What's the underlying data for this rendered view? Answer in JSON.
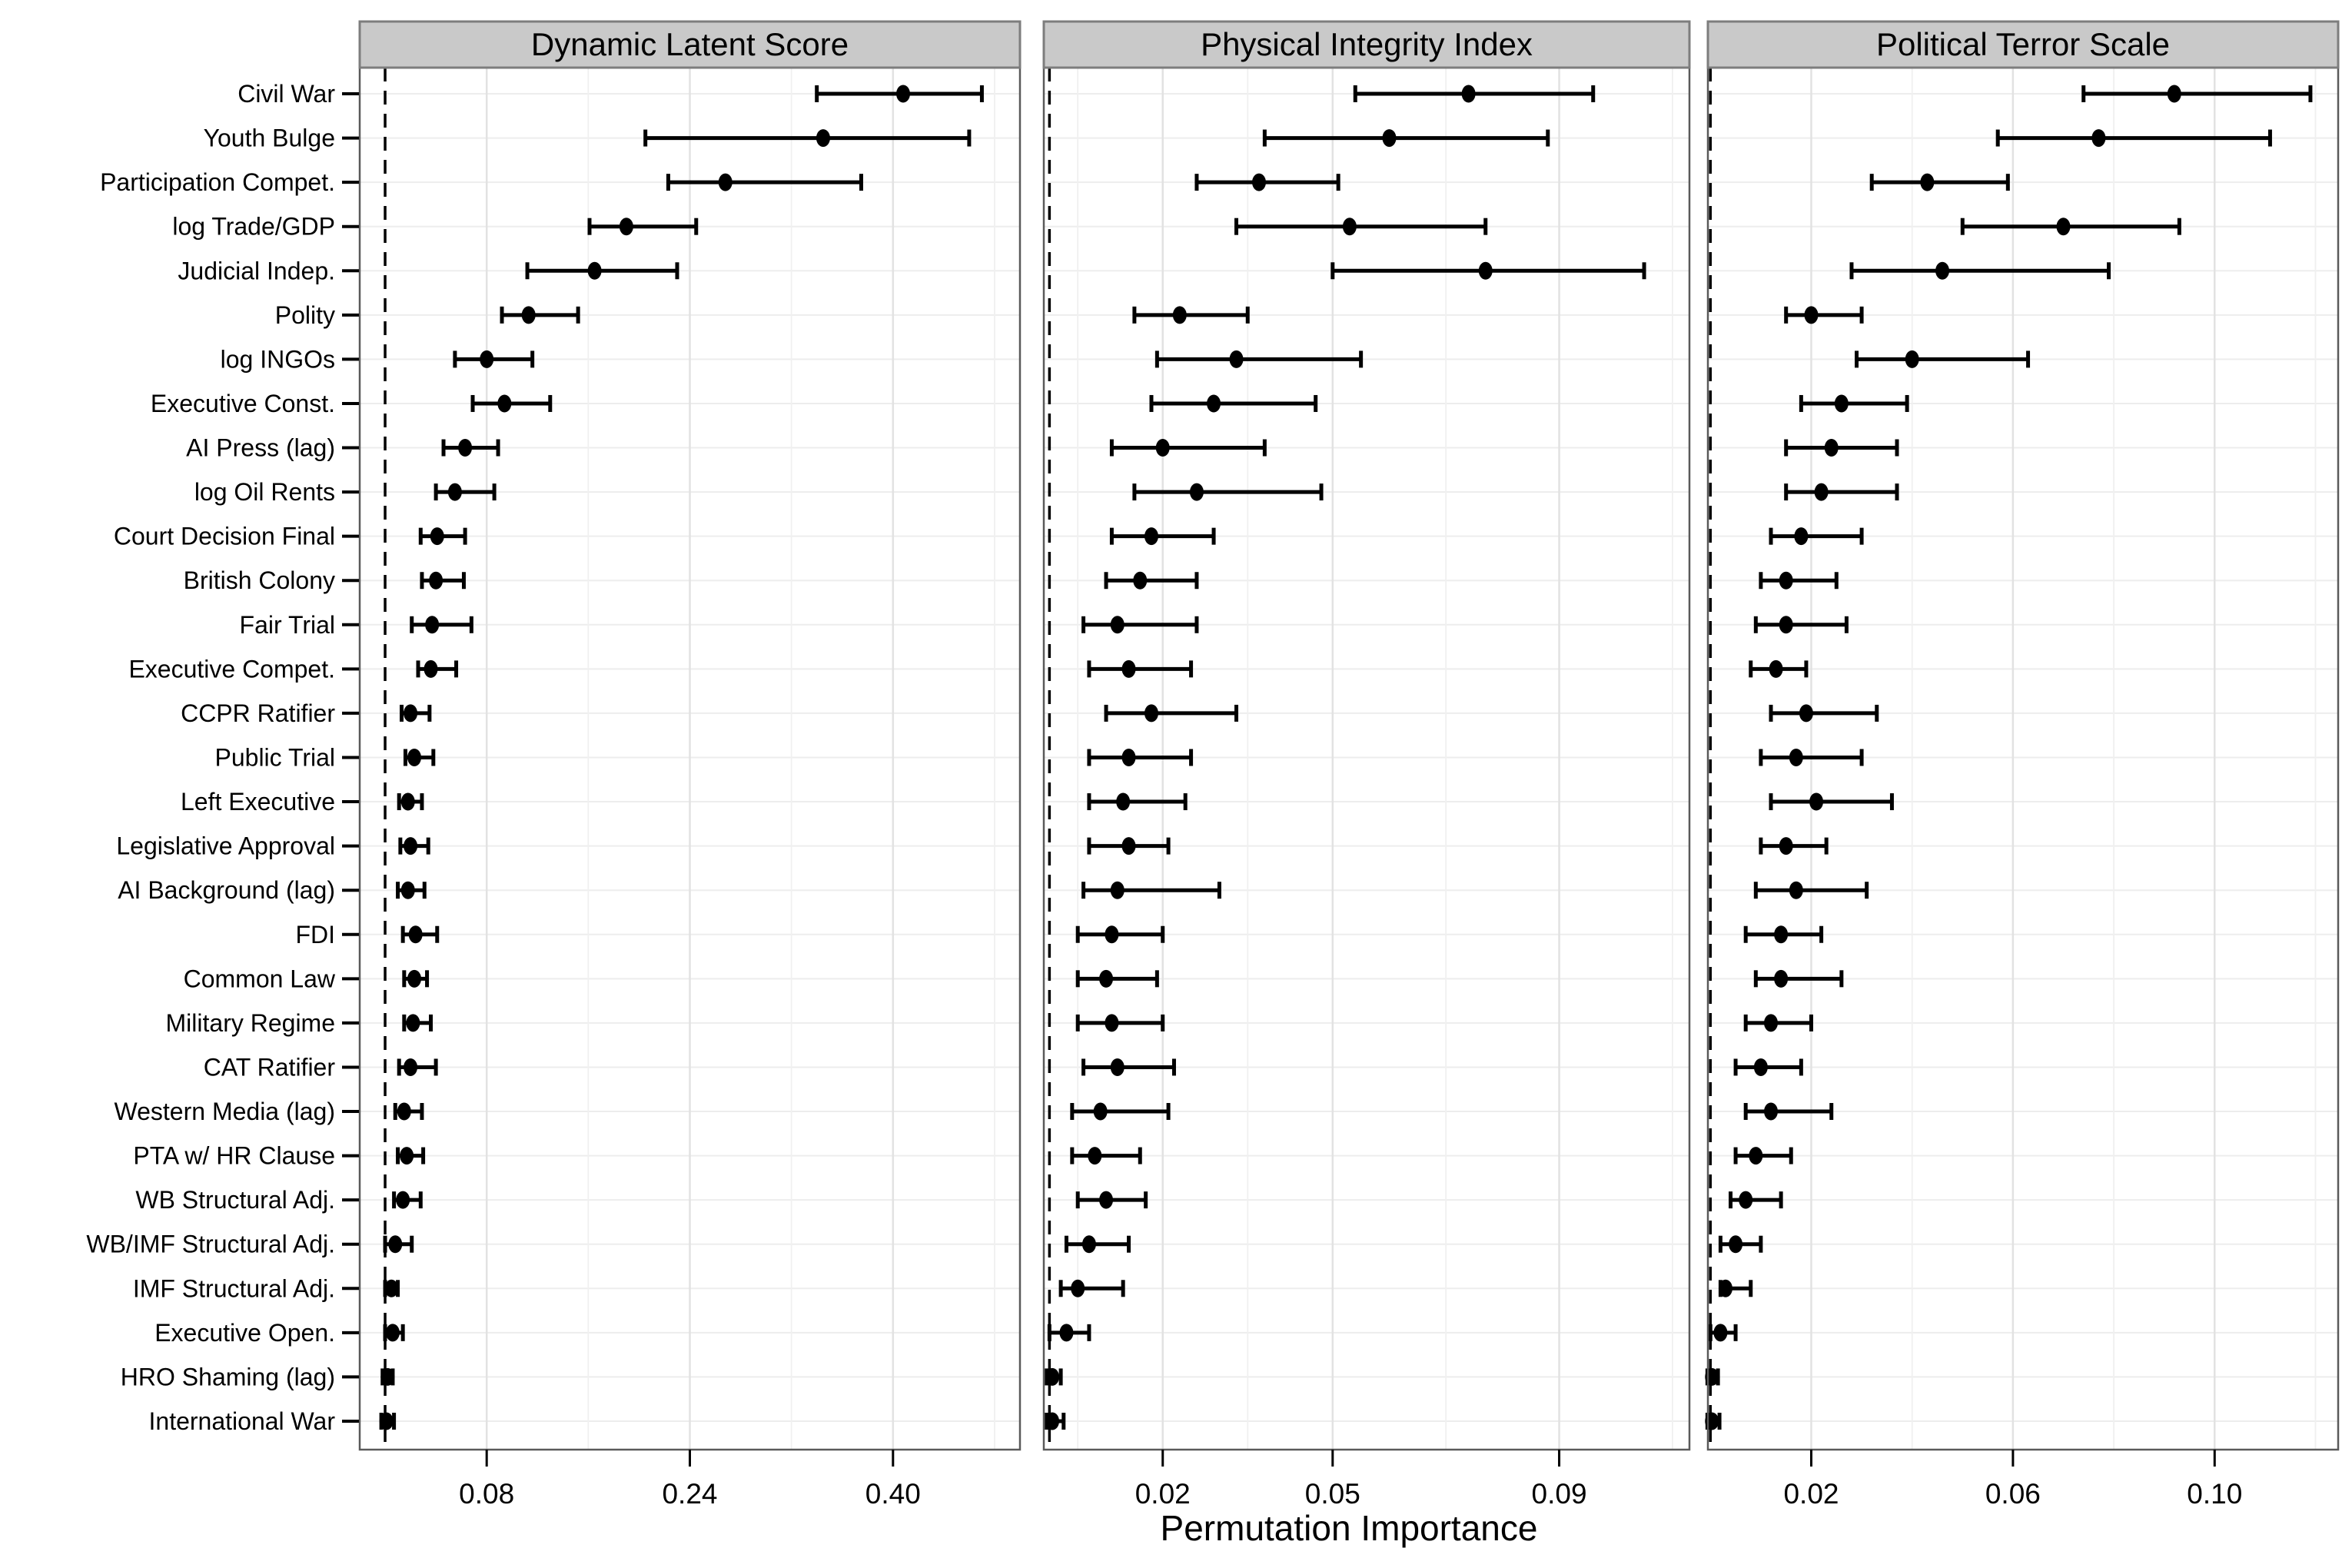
{
  "chart_data": {
    "type": "dot-whisker",
    "title": "",
    "xlabel": "Permutation Importance",
    "legend": "none",
    "grid": "on",
    "ref_line_x": 0,
    "ref_line_style": "dashed",
    "categories": [
      "Civil War",
      "Youth Bulge",
      "Participation Compet.",
      "log Trade/GDP",
      "Judicial Indep.",
      "Polity",
      "log INGOs",
      "Executive Const.",
      "AI Press (lag)",
      "log Oil Rents",
      "Court Decision Final",
      "British Colony",
      "Fair Trial",
      "Executive Compet.",
      "CCPR Ratifier",
      "Public Trial",
      "Left Executive",
      "Legislative Approval",
      "AI Background (lag)",
      "FDI",
      "Common Law",
      "Military Regime",
      "CAT Ratifier",
      "Western Media (lag)",
      "PTA w/ HR Clause",
      "WB Structural Adj.",
      "WB/IMF Structural Adj.",
      "IMF Structural Adj.",
      "Executive Open.",
      "HRO Shaming (lag)",
      "International War"
    ],
    "facets": [
      {
        "title": "Dynamic Latent Score",
        "xlim": [
          -0.02,
          0.5
        ],
        "ticks": [
          0.08,
          0.24,
          0.4
        ],
        "tick_labels": [
          "0.08",
          "0.24",
          "0.40"
        ],
        "minor_gridlines": [
          0.16,
          0.32,
          0.48
        ],
        "points": [
          [
            0.408,
            0.34,
            0.47
          ],
          [
            0.345,
            0.205,
            0.46
          ],
          [
            0.268,
            0.223,
            0.375
          ],
          [
            0.19,
            0.161,
            0.245
          ],
          [
            0.165,
            0.112,
            0.23
          ],
          [
            0.113,
            0.092,
            0.152
          ],
          [
            0.08,
            0.055,
            0.116
          ],
          [
            0.094,
            0.069,
            0.13
          ],
          [
            0.063,
            0.046,
            0.089
          ],
          [
            0.055,
            0.04,
            0.086
          ],
          [
            0.041,
            0.028,
            0.063
          ],
          [
            0.04,
            0.029,
            0.062
          ],
          [
            0.037,
            0.021,
            0.068
          ],
          [
            0.036,
            0.026,
            0.056
          ],
          [
            0.02,
            0.013,
            0.035
          ],
          [
            0.023,
            0.016,
            0.038
          ],
          [
            0.018,
            0.011,
            0.029
          ],
          [
            0.02,
            0.012,
            0.034
          ],
          [
            0.018,
            0.01,
            0.031
          ],
          [
            0.024,
            0.014,
            0.041
          ],
          [
            0.023,
            0.015,
            0.033
          ],
          [
            0.022,
            0.015,
            0.036
          ],
          [
            0.02,
            0.011,
            0.04
          ],
          [
            0.015,
            0.008,
            0.029
          ],
          [
            0.017,
            0.01,
            0.03
          ],
          [
            0.014,
            0.007,
            0.028
          ],
          [
            0.008,
            0.0,
            0.021
          ],
          [
            0.005,
            0.0,
            0.01
          ],
          [
            0.006,
            0.0,
            0.014
          ],
          [
            0.002,
            -0.002,
            0.006
          ],
          [
            0.001,
            -0.003,
            0.007
          ]
        ]
      },
      {
        "title": "Physical Integrity Index",
        "xlim": [
          -0.001,
          0.113
        ],
        "ticks": [
          0.02,
          0.05,
          0.09
        ],
        "tick_labels": [
          "0.02",
          "0.05",
          "0.09"
        ],
        "minor_gridlines": [
          0.005,
          0.035,
          0.07,
          0.11
        ],
        "points": [
          [
            0.074,
            0.054,
            0.096
          ],
          [
            0.06,
            0.038,
            0.088
          ],
          [
            0.037,
            0.026,
            0.051
          ],
          [
            0.053,
            0.033,
            0.077
          ],
          [
            0.077,
            0.05,
            0.105
          ],
          [
            0.023,
            0.015,
            0.035
          ],
          [
            0.033,
            0.019,
            0.055
          ],
          [
            0.029,
            0.018,
            0.047
          ],
          [
            0.02,
            0.011,
            0.038
          ],
          [
            0.026,
            0.015,
            0.048
          ],
          [
            0.018,
            0.011,
            0.029
          ],
          [
            0.016,
            0.01,
            0.026
          ],
          [
            0.012,
            0.006,
            0.026
          ],
          [
            0.014,
            0.007,
            0.025
          ],
          [
            0.018,
            0.01,
            0.033
          ],
          [
            0.014,
            0.007,
            0.025
          ],
          [
            0.013,
            0.007,
            0.024
          ],
          [
            0.014,
            0.007,
            0.021
          ],
          [
            0.012,
            0.006,
            0.03
          ],
          [
            0.011,
            0.005,
            0.02
          ],
          [
            0.01,
            0.005,
            0.019
          ],
          [
            0.011,
            0.005,
            0.02
          ],
          [
            0.012,
            0.006,
            0.022
          ],
          [
            0.009,
            0.004,
            0.021
          ],
          [
            0.008,
            0.004,
            0.016
          ],
          [
            0.01,
            0.005,
            0.017
          ],
          [
            0.007,
            0.003,
            0.014
          ],
          [
            0.005,
            0.002,
            0.013
          ],
          [
            0.003,
            0.0,
            0.007
          ],
          [
            0.0005,
            -0.0005,
            0.002
          ],
          [
            0.0005,
            -0.0005,
            0.0025
          ]
        ]
      },
      {
        "title": "Political Terror Scale",
        "xlim": [
          -0.0005,
          0.1245
        ],
        "ticks": [
          0.02,
          0.06,
          0.1
        ],
        "tick_labels": [
          "0.02",
          "0.06",
          "0.10"
        ],
        "minor_gridlines": [
          0.04,
          0.08,
          0.12
        ],
        "points": [
          [
            0.092,
            0.074,
            0.119
          ],
          [
            0.077,
            0.057,
            0.111
          ],
          [
            0.043,
            0.032,
            0.059
          ],
          [
            0.07,
            0.05,
            0.093
          ],
          [
            0.046,
            0.028,
            0.079
          ],
          [
            0.02,
            0.015,
            0.03
          ],
          [
            0.04,
            0.029,
            0.063
          ],
          [
            0.026,
            0.018,
            0.039
          ],
          [
            0.024,
            0.015,
            0.037
          ],
          [
            0.022,
            0.015,
            0.037
          ],
          [
            0.018,
            0.012,
            0.03
          ],
          [
            0.015,
            0.01,
            0.025
          ],
          [
            0.015,
            0.009,
            0.027
          ],
          [
            0.013,
            0.008,
            0.019
          ],
          [
            0.019,
            0.012,
            0.033
          ],
          [
            0.017,
            0.01,
            0.03
          ],
          [
            0.021,
            0.012,
            0.036
          ],
          [
            0.015,
            0.01,
            0.023
          ],
          [
            0.017,
            0.009,
            0.031
          ],
          [
            0.014,
            0.007,
            0.022
          ],
          [
            0.014,
            0.009,
            0.026
          ],
          [
            0.012,
            0.007,
            0.02
          ],
          [
            0.01,
            0.005,
            0.018
          ],
          [
            0.012,
            0.007,
            0.024
          ],
          [
            0.009,
            0.005,
            0.016
          ],
          [
            0.007,
            0.004,
            0.014
          ],
          [
            0.005,
            0.002,
            0.01
          ],
          [
            0.003,
            0.002,
            0.008
          ],
          [
            0.002,
            0.0,
            0.005
          ],
          [
            0.0003,
            -0.0006,
            0.0015
          ],
          [
            0.0003,
            -0.0006,
            0.0018
          ]
        ]
      }
    ]
  },
  "colors": {
    "data": "#000000",
    "ref_line": "#000000",
    "header_fill": "#c9c9c9",
    "header_border": "#7d7d7d",
    "panel_border": "#5a5a5a",
    "grid_major": "#e2e2e2",
    "grid_minor": "#f0f0f0",
    "grid_row": "#ededed",
    "background": "#ffffff",
    "text": "#000000"
  }
}
